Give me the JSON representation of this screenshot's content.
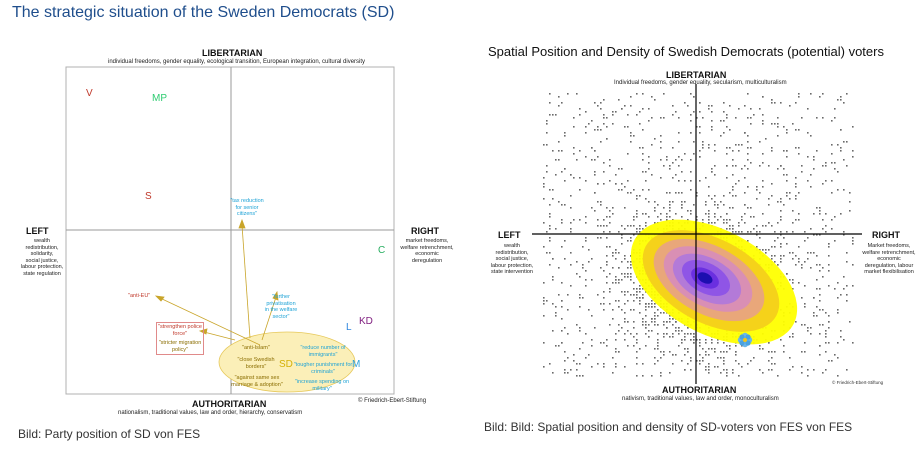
{
  "page_title": "The strategic situation of the Sweden Democrats (SD)",
  "left_figure": {
    "top_label": "LIBERTARIAN",
    "top_sub": "individual freedoms, gender equality, ecological transition, European integration, cultural diversity",
    "bottom_label": "AUTHORITARIAN",
    "bottom_sub": "nationalism, traditional values, law and order, hierarchy, conservatism",
    "left_label": "LEFT",
    "left_sub": [
      "wealth",
      "redistribution,",
      "solidarity,",
      "social justice,",
      "labour protection,",
      "state regulation"
    ],
    "right_label": "RIGHT",
    "right_sub": [
      "market freedoms,",
      "welfare retrenchment,",
      "economic",
      "deregulation"
    ],
    "credit": "© Friedrich-Ebert-Stiftung",
    "parties": [
      {
        "name": "V",
        "color": "#c0392b"
      },
      {
        "name": "MP",
        "color": "#2ecc71"
      },
      {
        "name": "S",
        "color": "#c0392b"
      },
      {
        "name": "C",
        "color": "#27ae60"
      },
      {
        "name": "L",
        "color": "#2e86de"
      },
      {
        "name": "KD",
        "color": "#7d1a7d"
      },
      {
        "name": "M",
        "color": "#2e9fd8"
      },
      {
        "name": "SD",
        "color": "#d4b106"
      }
    ],
    "notes": {
      "tax": [
        "\"tax reduction",
        "for senior",
        "citizens\""
      ],
      "priv": [
        "\"further",
        "privatisation",
        "in the welfare",
        "sector\""
      ],
      "antieu": "\"anti-EU\"",
      "police": "\"strengthen police force\"",
      "migration": "\"stricter migration policy\"",
      "islam": "\"anti-Islam\"",
      "borders": [
        "\"close Swedish",
        "borders\""
      ],
      "samesex": [
        "\"against same sex",
        "marriage & adoption\""
      ],
      "immig": [
        "\"reduce number of",
        "immigrants\""
      ],
      "crim": [
        "\"tougher punishment for",
        "criminals\""
      ],
      "mil": [
        "\"increase spending on",
        "military\""
      ]
    },
    "caption": "Bild: Party position of SD von FES"
  },
  "right_figure": {
    "title": "Spatial Position and Density of Swedish Democrats (potential) voters",
    "top_label": "LIBERTARIAN",
    "top_sub": "Individual freedoms, gender equality, secularism, multiculturalism",
    "bottom_label": "AUTHORITARIAN",
    "bottom_sub": "nativism, traditional values, law and order, monoculturalism",
    "left_label": "LEFT",
    "left_sub": [
      "wealth",
      "redistribution,",
      "social justice,",
      "labour protection,",
      "state intervention"
    ],
    "right_label": "RIGHT",
    "right_sub": [
      "Market freedoms,",
      "welfare retrenchment,",
      "economic",
      "deregulation, labour",
      "market flexibilisation"
    ],
    "credit": "© Friedrich-Ebert-Stiftung",
    "caption": "Bild: Bild: Spatial position and density of SD-voters von FES von FES"
  }
}
